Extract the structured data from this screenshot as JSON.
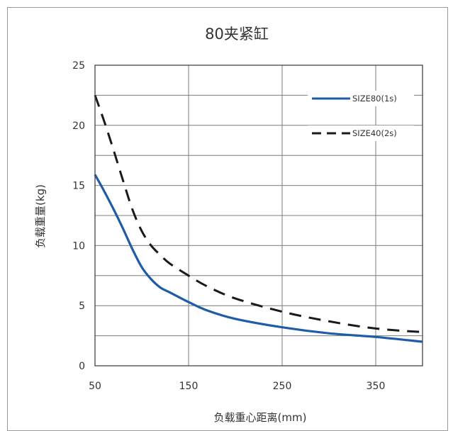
{
  "chart_data": {
    "type": "line",
    "title": "80夹紧缸",
    "xlabel": "负载重心距离(mm)",
    "ylabel": "负载重量(kg)",
    "xlim": [
      50,
      400
    ],
    "ylim": [
      0,
      25
    ],
    "x_ticks": [
      "50",
      "150",
      "250",
      "350"
    ],
    "y_ticks": [
      "0",
      "5",
      "10",
      "15",
      "20",
      "25"
    ],
    "grid": true,
    "legend_position": "top-right",
    "series": [
      {
        "name": "SIZE80(1s)",
        "color": "#1f5ca8",
        "style": "solid",
        "x": [
          50,
          60,
          70,
          80,
          90,
          100,
          110,
          120,
          130,
          150,
          170,
          200,
          250,
          300,
          350,
          400
        ],
        "y": [
          15.9,
          14.5,
          13.0,
          11.4,
          9.7,
          8.2,
          7.2,
          6.5,
          6.1,
          5.3,
          4.6,
          3.9,
          3.2,
          2.7,
          2.4,
          2.0
        ]
      },
      {
        "name": "SIZE40(2s)",
        "color": "#1a1a1a",
        "style": "dashed",
        "x": [
          50,
          60,
          70,
          80,
          90,
          100,
          110,
          120,
          130,
          150,
          170,
          200,
          250,
          300,
          350,
          400
        ],
        "y": [
          22.5,
          20.3,
          17.9,
          15.4,
          13.0,
          11.2,
          10.0,
          9.2,
          8.5,
          7.5,
          6.6,
          5.6,
          4.5,
          3.7,
          3.1,
          2.8
        ]
      }
    ]
  }
}
